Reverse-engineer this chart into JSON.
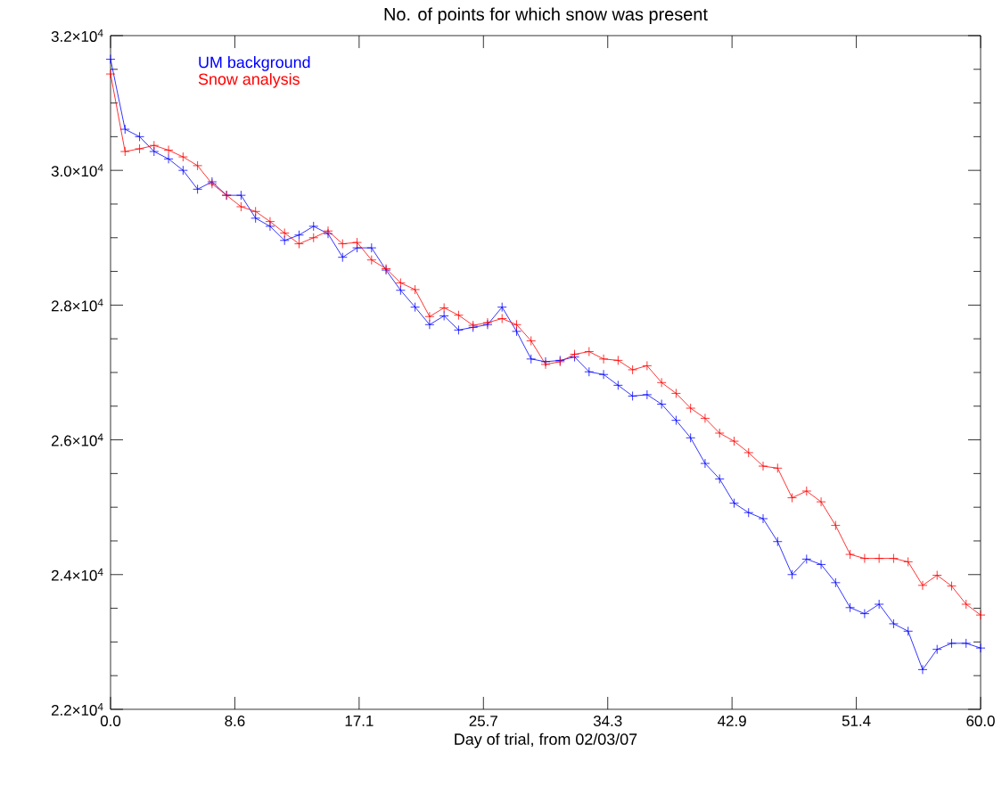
{
  "chart_data": {
    "type": "line",
    "title": "No. of points for which snow was present",
    "xlabel": "Day of trial, from 02/03/07",
    "x": [
      0,
      1,
      2,
      3,
      4,
      5,
      6,
      7,
      8,
      9,
      10,
      11,
      12,
      13,
      14,
      15,
      16,
      17,
      18,
      19,
      20,
      21,
      22,
      23,
      24,
      25,
      26,
      27,
      28,
      29,
      30,
      31,
      32,
      33,
      34,
      35,
      36,
      37,
      38,
      39,
      40,
      41,
      42,
      43,
      44,
      45,
      46,
      47,
      48,
      49,
      50,
      51,
      52,
      53,
      54,
      55,
      56,
      57,
      58,
      59,
      60
    ],
    "series": [
      {
        "name": "UM background",
        "color": "#0000ff",
        "values": [
          31650,
          30610,
          30500,
          30280,
          30170,
          30000,
          29720,
          29830,
          29630,
          29630,
          29290,
          29170,
          28960,
          29040,
          29170,
          29060,
          28710,
          28850,
          28850,
          28520,
          28220,
          27970,
          27710,
          27840,
          27630,
          27670,
          27710,
          27970,
          27610,
          27200,
          27160,
          27180,
          27230,
          27010,
          26970,
          26810,
          26650,
          26670,
          26530,
          26290,
          26030,
          25650,
          25420,
          25060,
          24920,
          24830,
          24490,
          24000,
          24230,
          24150,
          23880,
          23510,
          23420,
          23560,
          23270,
          23160,
          22590,
          22890,
          22980,
          22980,
          22910
        ]
      },
      {
        "name": "Snow analysis",
        "color": "#ff0000",
        "values": [
          31430,
          30280,
          30320,
          30370,
          30300,
          30200,
          30070,
          29800,
          29630,
          29460,
          29390,
          29240,
          29070,
          28910,
          29000,
          29100,
          28910,
          28930,
          28670,
          28540,
          28330,
          28230,
          27830,
          27960,
          27850,
          27700,
          27740,
          27800,
          27710,
          27470,
          27120,
          27160,
          27270,
          27310,
          27200,
          27180,
          27040,
          27100,
          26850,
          26690,
          26470,
          26320,
          26100,
          25980,
          25810,
          25610,
          25580,
          25140,
          25240,
          25080,
          24730,
          24300,
          24240,
          24240,
          24240,
          24190,
          23840,
          23990,
          23830,
          23560,
          23400
        ]
      }
    ],
    "xlim": [
      0,
      60
    ],
    "ylim": [
      22000,
      32000
    ],
    "xticks": [
      {
        "value": 0,
        "label": "0.0"
      },
      {
        "value": 8.571,
        "label": "8.6"
      },
      {
        "value": 17.143,
        "label": "17.1"
      },
      {
        "value": 25.714,
        "label": "25.7"
      },
      {
        "value": 34.286,
        "label": "34.3"
      },
      {
        "value": 42.857,
        "label": "42.9"
      },
      {
        "value": 51.429,
        "label": "51.4"
      },
      {
        "value": 60,
        "label": "60.0"
      }
    ],
    "yticks": [
      {
        "value": 22000,
        "label": "2.2×10$^{4}$"
      },
      {
        "value": 24000,
        "label": "2.4×10$^{4}$"
      },
      {
        "value": 26000,
        "label": "2.6×10$^{4}$"
      },
      {
        "value": 28000,
        "label": "2.8×10$^{4}$"
      },
      {
        "value": 30000,
        "label": "3.0×10$^{4}$"
      },
      {
        "value": 32000,
        "label": "3.2×10$^{4}$"
      }
    ],
    "legend": "top left",
    "marker": "cross",
    "line_style": "solid",
    "grid": false
  }
}
